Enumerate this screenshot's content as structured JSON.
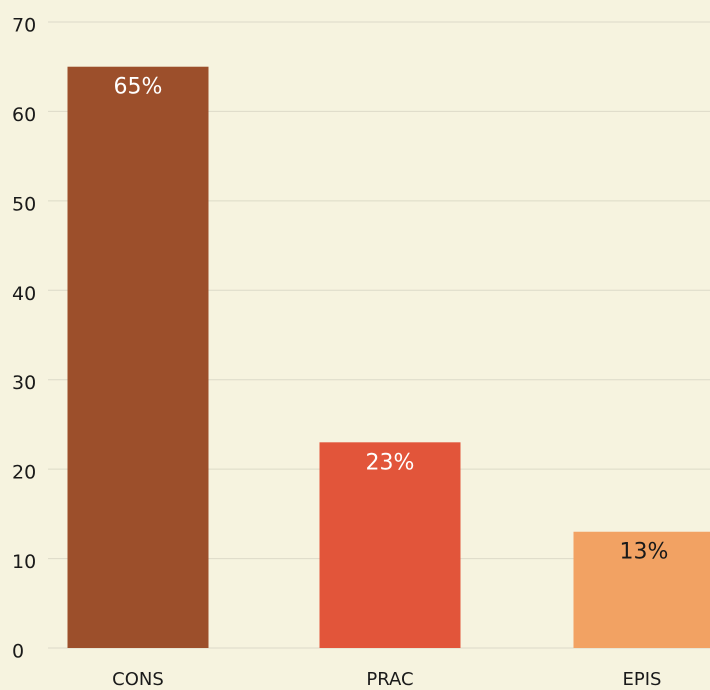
{
  "chart_data": {
    "type": "bar",
    "categories": [
      "CONS",
      "PRAC",
      "EPIS"
    ],
    "values": [
      65,
      23,
      13
    ],
    "value_labels": [
      "65%",
      "23%",
      "13%"
    ],
    "colors": [
      "#9c4f2b",
      "#e2553a",
      "#f2a263"
    ],
    "label_colors": [
      "#ffffff",
      "#ffffff",
      "#1a1a1a"
    ],
    "ylim": [
      0,
      70
    ],
    "yticks": [
      0,
      10,
      20,
      30,
      40,
      50,
      60,
      70
    ],
    "grid": true
  }
}
